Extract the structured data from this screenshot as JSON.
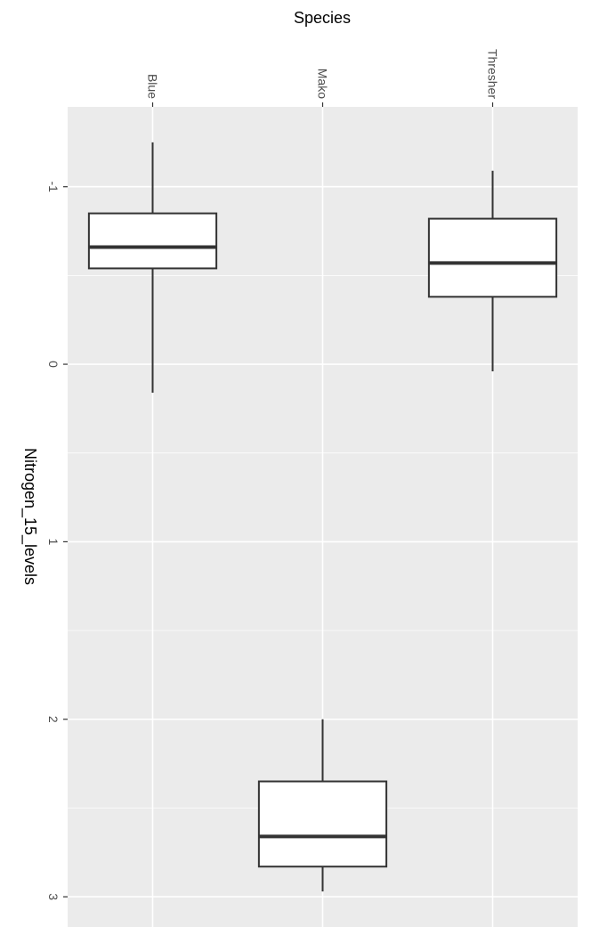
{
  "chart_data": {
    "type": "boxplot",
    "orientation": "rotated-90-clockwise",
    "x_label": "Species",
    "y_label": "Nitrogen_15_levels",
    "categories": [
      "Blue",
      "Mako",
      "Thresher"
    ],
    "y_ticks": [
      -1,
      0,
      1,
      2,
      3
    ],
    "y_tick_labels": [
      "-1",
      "0",
      "1",
      "2",
      "3"
    ],
    "ylim": [
      -1.45,
      3.17
    ],
    "grid": true,
    "panel_color": "#ebebeb",
    "grid_color": "#ffffff",
    "box_fill": "#ffffff",
    "line_color": "#333333",
    "boxes": [
      {
        "category": "Blue",
        "whisker_low": -1.25,
        "q1": -0.85,
        "median": -0.66,
        "q3": -0.54,
        "whisker_high": 0.16
      },
      {
        "category": "Mako",
        "whisker_low": 2.0,
        "q1": 2.35,
        "median": 2.66,
        "q3": 2.83,
        "whisker_high": 2.97
      },
      {
        "category": "Thresher",
        "whisker_low": -1.09,
        "q1": -0.82,
        "median": -0.57,
        "q3": -0.38,
        "whisker_high": 0.04
      }
    ]
  }
}
